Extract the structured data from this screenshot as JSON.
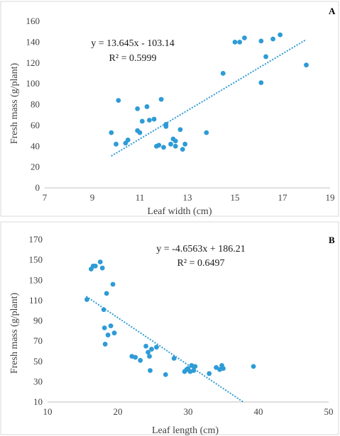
{
  "chart_data": [
    {
      "panel_label": "A",
      "type": "scatter",
      "xlabel": "Leaf width (cm)",
      "ylabel": "Fresh mass (g/plant)",
      "xlim": [
        7,
        19
      ],
      "ylim": [
        0,
        160
      ],
      "xticks": [
        7,
        9,
        11,
        13,
        15,
        17,
        19
      ],
      "yticks": [
        0,
        20,
        40,
        60,
        80,
        100,
        120,
        140,
        160
      ],
      "trendline": {
        "type": "linear",
        "slope": 13.645,
        "intercept": -103.14,
        "x_range": [
          9.8,
          18
        ]
      },
      "annotations": [
        "y = 13.645x - 103.14",
        "R² = 0.5999"
      ],
      "marker_color": "#2e9bd6",
      "points": [
        {
          "x": 9.8,
          "y": 53
        },
        {
          "x": 10.0,
          "y": 42
        },
        {
          "x": 10.1,
          "y": 84
        },
        {
          "x": 10.4,
          "y": 43
        },
        {
          "x": 10.5,
          "y": 46
        },
        {
          "x": 10.9,
          "y": 55
        },
        {
          "x": 10.9,
          "y": 76
        },
        {
          "x": 11.0,
          "y": 53
        },
        {
          "x": 11.1,
          "y": 64
        },
        {
          "x": 11.3,
          "y": 78
        },
        {
          "x": 11.4,
          "y": 65
        },
        {
          "x": 11.6,
          "y": 66
        },
        {
          "x": 11.7,
          "y": 40
        },
        {
          "x": 11.8,
          "y": 41
        },
        {
          "x": 11.9,
          "y": 85
        },
        {
          "x": 12.0,
          "y": 39
        },
        {
          "x": 12.1,
          "y": 59
        },
        {
          "x": 12.1,
          "y": 61
        },
        {
          "x": 12.3,
          "y": 42
        },
        {
          "x": 12.4,
          "y": 47
        },
        {
          "x": 12.5,
          "y": 40
        },
        {
          "x": 12.5,
          "y": 45
        },
        {
          "x": 12.7,
          "y": 56
        },
        {
          "x": 12.8,
          "y": 37
        },
        {
          "x": 12.9,
          "y": 42
        },
        {
          "x": 13.8,
          "y": 53
        },
        {
          "x": 14.5,
          "y": 110
        },
        {
          "x": 15.0,
          "y": 140
        },
        {
          "x": 15.2,
          "y": 140
        },
        {
          "x": 15.4,
          "y": 144
        },
        {
          "x": 16.1,
          "y": 101
        },
        {
          "x": 16.1,
          "y": 141
        },
        {
          "x": 16.3,
          "y": 126
        },
        {
          "x": 16.6,
          "y": 143
        },
        {
          "x": 16.9,
          "y": 147
        },
        {
          "x": 18.0,
          "y": 118
        }
      ]
    },
    {
      "panel_label": "B",
      "type": "scatter",
      "xlabel": "Leaf length (cm)",
      "ylabel": "Fresh mass (g/plant)",
      "xlim": [
        10,
        50
      ],
      "ylim": [
        10,
        170
      ],
      "xticks": [
        10,
        20,
        30,
        40,
        50
      ],
      "yticks": [
        10,
        30,
        50,
        70,
        90,
        110,
        130,
        150,
        170
      ],
      "trendline": {
        "type": "linear",
        "slope": -4.6563,
        "intercept": 186.21,
        "x_range": [
          15.5,
          37.8
        ]
      },
      "annotations": [
        "y = -4.6563x + 186.21",
        "R² = 0.6497"
      ],
      "marker_color": "#2e9bd6",
      "points": [
        {
          "x": 15.6,
          "y": 111
        },
        {
          "x": 16.2,
          "y": 141
        },
        {
          "x": 16.5,
          "y": 144
        },
        {
          "x": 16.8,
          "y": 144
        },
        {
          "x": 17.5,
          "y": 148
        },
        {
          "x": 17.8,
          "y": 142
        },
        {
          "x": 18.0,
          "y": 101
        },
        {
          "x": 18.1,
          "y": 83
        },
        {
          "x": 18.2,
          "y": 67
        },
        {
          "x": 18.4,
          "y": 117
        },
        {
          "x": 18.6,
          "y": 76
        },
        {
          "x": 19.0,
          "y": 85
        },
        {
          "x": 19.3,
          "y": 126
        },
        {
          "x": 19.5,
          "y": 78
        },
        {
          "x": 22.0,
          "y": 55
        },
        {
          "x": 22.5,
          "y": 54
        },
        {
          "x": 23.2,
          "y": 51
        },
        {
          "x": 24.0,
          "y": 65
        },
        {
          "x": 24.3,
          "y": 59
        },
        {
          "x": 24.5,
          "y": 55
        },
        {
          "x": 24.6,
          "y": 41
        },
        {
          "x": 24.8,
          "y": 62
        },
        {
          "x": 25.5,
          "y": 64
        },
        {
          "x": 26.8,
          "y": 37
        },
        {
          "x": 28.0,
          "y": 53
        },
        {
          "x": 29.5,
          "y": 40
        },
        {
          "x": 29.8,
          "y": 42
        },
        {
          "x": 30.0,
          "y": 43
        },
        {
          "x": 30.3,
          "y": 40
        },
        {
          "x": 30.5,
          "y": 46
        },
        {
          "x": 30.8,
          "y": 41
        },
        {
          "x": 31.0,
          "y": 45
        },
        {
          "x": 33.0,
          "y": 38
        },
        {
          "x": 34.0,
          "y": 44
        },
        {
          "x": 34.5,
          "y": 42
        },
        {
          "x": 34.8,
          "y": 46
        },
        {
          "x": 35.0,
          "y": 43
        },
        {
          "x": 39.3,
          "y": 45
        }
      ]
    }
  ]
}
